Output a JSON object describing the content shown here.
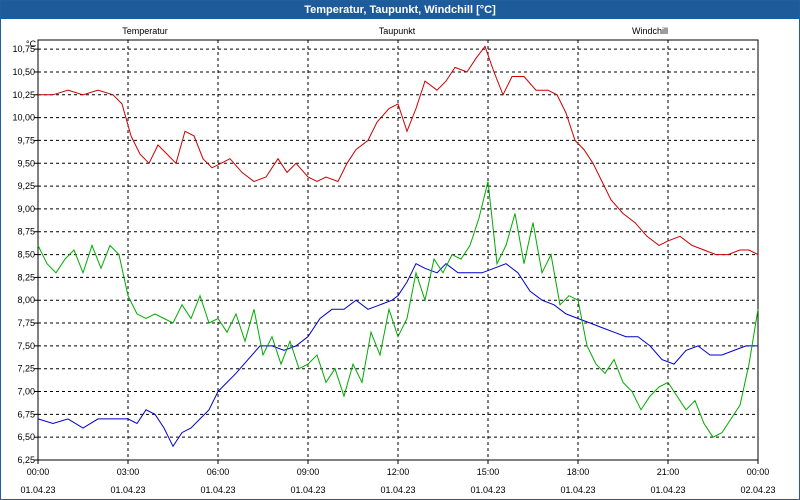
{
  "title": "Temperatur, Taupunkt, Windchill [°C]",
  "chart_data": {
    "type": "line",
    "ylabel": "°C",
    "ylim": [
      6.25,
      10.85
    ],
    "y_ticks": [
      "6,25",
      "6,50",
      "6,75",
      "7,00",
      "7,25",
      "7,50",
      "7,75",
      "8,00",
      "8,25",
      "8,50",
      "8,75",
      "9,00",
      "9,25",
      "9,50",
      "9,75",
      "10,00",
      "10,25",
      "10,50",
      "10,75"
    ],
    "y_tick_values": [
      6.25,
      6.5,
      6.75,
      7.0,
      7.25,
      7.5,
      7.75,
      8.0,
      8.25,
      8.5,
      8.75,
      9.0,
      9.25,
      9.5,
      9.75,
      10.0,
      10.25,
      10.5,
      10.75
    ],
    "x_tick_times": [
      "00:00",
      "03:00",
      "06:00",
      "09:00",
      "12:00",
      "15:00",
      "18:00",
      "21:00",
      "00:00"
    ],
    "x_tick_dates": [
      "01.04.23",
      "01.04.23",
      "01.04.23",
      "01.04.23",
      "01.04.23",
      "01.04.23",
      "01.04.23",
      "01.04.23",
      "02.04.23"
    ],
    "x_tick_hours": [
      0,
      3,
      6,
      9,
      12,
      15,
      18,
      21,
      24
    ],
    "xlim": [
      0,
      24
    ],
    "grid": true,
    "series": [
      {
        "name": "Temperatur",
        "color": "#cc0000",
        "x": [
          0,
          0.5,
          1,
          1.5,
          2,
          2.5,
          2.8,
          3.1,
          3.4,
          3.7,
          4.0,
          4.3,
          4.6,
          4.9,
          5.2,
          5.5,
          5.8,
          6.1,
          6.4,
          6.8,
          7.2,
          7.6,
          8.0,
          8.3,
          8.6,
          9.0,
          9.3,
          9.6,
          10.0,
          10.3,
          10.6,
          11.0,
          11.3,
          11.7,
          12.0,
          12.3,
          12.6,
          12.9,
          13.3,
          13.6,
          13.9,
          14.3,
          14.6,
          14.9,
          15.2,
          15.5,
          15.8,
          16.2,
          16.6,
          17.0,
          17.3,
          17.6,
          17.9,
          18.2,
          18.5,
          18.8,
          19.1,
          19.5,
          19.9,
          20.3,
          20.7,
          21.0,
          21.4,
          21.8,
          22.2,
          22.6,
          23.0,
          23.4,
          23.7,
          24.0
        ],
        "values": [
          10.25,
          10.25,
          10.3,
          10.25,
          10.3,
          10.25,
          10.15,
          9.8,
          9.6,
          9.5,
          9.7,
          9.6,
          9.5,
          9.85,
          9.8,
          9.55,
          9.45,
          9.5,
          9.55,
          9.4,
          9.3,
          9.35,
          9.55,
          9.4,
          9.5,
          9.35,
          9.3,
          9.35,
          9.3,
          9.5,
          9.65,
          9.75,
          9.95,
          10.1,
          10.15,
          9.85,
          10.1,
          10.4,
          10.3,
          10.4,
          10.55,
          10.5,
          10.65,
          10.78,
          10.5,
          10.25,
          10.45,
          10.45,
          10.3,
          10.3,
          10.25,
          10.05,
          9.75,
          9.65,
          9.5,
          9.3,
          9.1,
          8.95,
          8.85,
          8.7,
          8.6,
          8.65,
          8.7,
          8.6,
          8.55,
          8.5,
          8.5,
          8.55,
          8.55,
          8.5
        ]
      },
      {
        "name": "Taupunkt",
        "color": "#0000cc",
        "x": [
          0,
          0.5,
          1,
          1.5,
          2,
          2.5,
          3.0,
          3.3,
          3.6,
          3.9,
          4.2,
          4.5,
          4.8,
          5.1,
          5.4,
          5.7,
          6.0,
          6.3,
          6.6,
          7.0,
          7.4,
          7.8,
          8.2,
          8.6,
          9.0,
          9.4,
          9.8,
          10.2,
          10.6,
          11.0,
          11.4,
          11.8,
          12.0,
          12.3,
          12.6,
          12.9,
          13.3,
          13.6,
          14.0,
          14.4,
          14.8,
          15.2,
          15.6,
          16.0,
          16.4,
          16.8,
          17.2,
          17.6,
          18.0,
          18.4,
          18.8,
          19.2,
          19.6,
          20.0,
          20.4,
          20.8,
          21.2,
          21.6,
          22.0,
          22.4,
          22.8,
          23.2,
          23.6,
          24.0
        ],
        "values": [
          6.7,
          6.65,
          6.7,
          6.6,
          6.7,
          6.7,
          6.7,
          6.65,
          6.8,
          6.75,
          6.6,
          6.4,
          6.55,
          6.6,
          6.7,
          6.8,
          7.0,
          7.1,
          7.2,
          7.35,
          7.5,
          7.5,
          7.45,
          7.5,
          7.6,
          7.8,
          7.9,
          7.9,
          8.0,
          7.9,
          7.95,
          8.0,
          8.05,
          8.2,
          8.4,
          8.35,
          8.3,
          8.4,
          8.3,
          8.3,
          8.3,
          8.35,
          8.4,
          8.3,
          8.1,
          8.0,
          7.95,
          7.85,
          7.8,
          7.75,
          7.7,
          7.65,
          7.6,
          7.6,
          7.5,
          7.35,
          7.3,
          7.45,
          7.5,
          7.4,
          7.4,
          7.45,
          7.5,
          7.5
        ]
      },
      {
        "name": "Windchill",
        "color": "#00aa00",
        "x": [
          0,
          0.3,
          0.6,
          0.9,
          1.2,
          1.5,
          1.8,
          2.1,
          2.4,
          2.7,
          3.0,
          3.3,
          3.6,
          3.9,
          4.2,
          4.5,
          4.8,
          5.1,
          5.4,
          5.7,
          6.0,
          6.3,
          6.6,
          6.9,
          7.2,
          7.5,
          7.8,
          8.1,
          8.4,
          8.7,
          9.0,
          9.3,
          9.6,
          9.9,
          10.2,
          10.5,
          10.8,
          11.1,
          11.4,
          11.7,
          12.0,
          12.3,
          12.6,
          12.9,
          13.2,
          13.5,
          13.8,
          14.1,
          14.4,
          14.7,
          15.0,
          15.3,
          15.6,
          15.9,
          16.2,
          16.5,
          16.8,
          17.1,
          17.4,
          17.7,
          18.0,
          18.3,
          18.6,
          18.9,
          19.2,
          19.5,
          19.8,
          20.1,
          20.4,
          20.7,
          21.0,
          21.3,
          21.6,
          21.9,
          22.2,
          22.5,
          22.8,
          23.1,
          23.4,
          23.7,
          24.0
        ],
        "values": [
          8.6,
          8.4,
          8.3,
          8.45,
          8.55,
          8.3,
          8.6,
          8.35,
          8.6,
          8.5,
          8.05,
          7.85,
          7.8,
          7.85,
          7.8,
          7.75,
          7.95,
          7.8,
          8.05,
          7.75,
          7.8,
          7.65,
          7.85,
          7.55,
          7.9,
          7.4,
          7.6,
          7.3,
          7.55,
          7.25,
          7.3,
          7.4,
          7.1,
          7.25,
          6.95,
          7.3,
          7.1,
          7.65,
          7.4,
          7.9,
          7.6,
          7.8,
          8.3,
          8.0,
          8.45,
          8.3,
          8.5,
          8.45,
          8.6,
          8.9,
          9.3,
          8.4,
          8.6,
          8.95,
          8.4,
          8.85,
          8.3,
          8.5,
          7.95,
          8.05,
          8.0,
          7.5,
          7.3,
          7.2,
          7.35,
          7.1,
          7.0,
          6.8,
          6.95,
          7.05,
          7.1,
          6.95,
          6.8,
          6.9,
          6.65,
          6.5,
          6.55,
          6.7,
          6.85,
          7.3,
          7.9
        ]
      }
    ]
  }
}
